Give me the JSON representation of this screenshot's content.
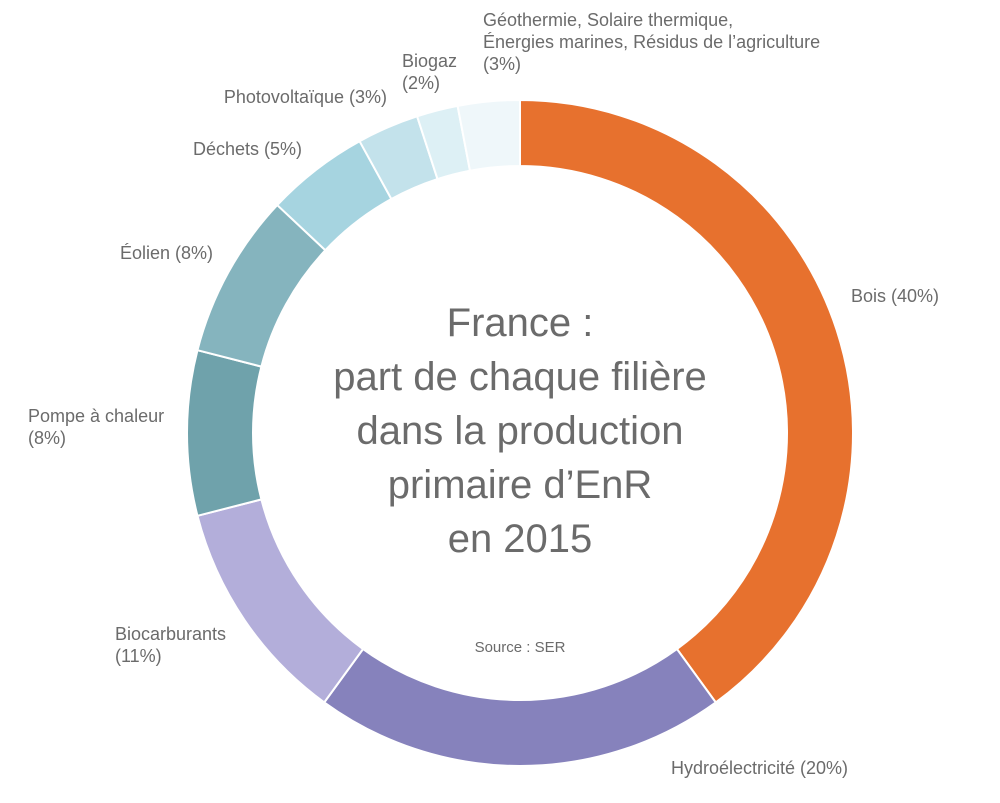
{
  "page": {
    "background_color": "#ffffff",
    "text_color": "#6B6B6B"
  },
  "chart_data": {
    "type": "pie",
    "variant": "donut",
    "title": "France : part de chaque filière dans la production primaire d’EnR en 2015",
    "title_lines": [
      "France :",
      "part de chaque filière",
      "dans la production",
      "primaire d’EnR",
      "en 2015"
    ],
    "source": "Source : SER",
    "start_angle_deg": 0,
    "direction": "clockwise",
    "legend_position": "around-labels",
    "segments": [
      {
        "label": "Bois",
        "value_pct": 40,
        "color": "#E7712E"
      },
      {
        "label": "Hydroélectricité",
        "value_pct": 20,
        "color": "#8682BC"
      },
      {
        "label": "Biocarburants",
        "value_pct": 11,
        "color": "#B3AEDA"
      },
      {
        "label": "Pompe à chaleur",
        "value_pct": 8,
        "color": "#6FA2AB"
      },
      {
        "label": "Éolien",
        "value_pct": 8,
        "color": "#85B4BE"
      },
      {
        "label": "Déchets",
        "value_pct": 5,
        "color": "#A6D4E0"
      },
      {
        "label": "Photovoltaïque",
        "value_pct": 3,
        "color": "#C3E2EB"
      },
      {
        "label": "Biogaz",
        "value_pct": 2,
        "color": "#DDF0F5"
      },
      {
        "label": "Géothermie, Solaire thermique, Énergies marines, Résidus de l’agriculture",
        "value_pct": 3,
        "color": "#EFF7FA"
      }
    ]
  },
  "callouts": {
    "geothermie": {
      "line1": "Géothermie, Solaire thermique,",
      "line2": "Énergies marines, Résidus de l’agriculture",
      "line3": "(3%)"
    },
    "biogaz": {
      "line1": "Biogaz",
      "line2": "(2%)"
    },
    "photovoltaique": {
      "line1": "Photovoltaïque (3%)"
    },
    "dechets": {
      "line1": "Déchets (5%)"
    },
    "eolien": {
      "line1": "Éolien (8%)"
    },
    "pompe": {
      "line1": "Pompe à chaleur",
      "line2": "(8%)"
    },
    "biocarburants": {
      "line1": "Biocarburants",
      "line2": "(11%)"
    },
    "hydro": {
      "line1": "Hydroélectricité (20%)"
    },
    "bois": {
      "line1": "Bois (40%)"
    }
  }
}
